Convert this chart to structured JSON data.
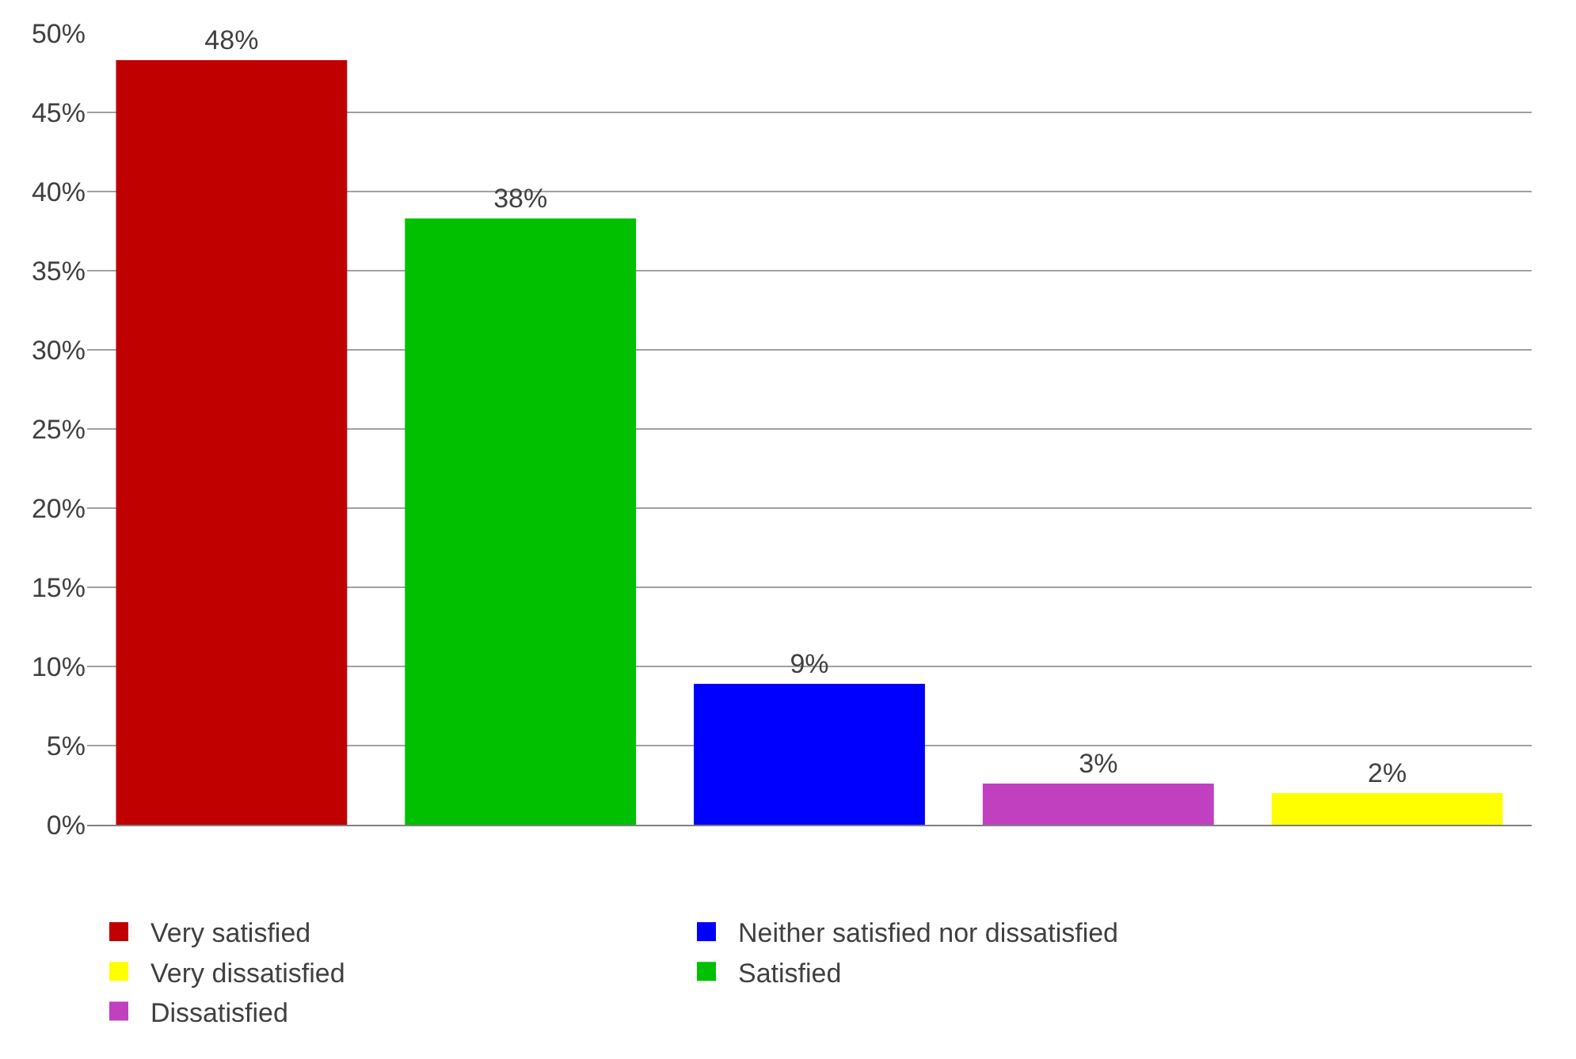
{
  "chart_data": {
    "type": "bar",
    "categories": [
      null,
      null,
      null,
      null,
      null
    ],
    "series": [
      {
        "name": "Very satisfied",
        "color": "#c00000",
        "values": [
          48.3,
          null,
          null,
          null,
          null
        ],
        "value_labels": [
          "48%",
          null,
          null,
          null,
          null
        ]
      },
      {
        "name": "Satisfied",
        "color": "#00c000",
        "values": [
          null,
          38.3,
          null,
          null,
          null
        ],
        "value_labels": [
          null,
          "38%",
          null,
          null,
          null
        ]
      },
      {
        "name": "Neither satisfied nor dissatisfied",
        "color": "#0000ff",
        "values": [
          null,
          null,
          8.9,
          null,
          null
        ],
        "value_labels": [
          null,
          null,
          "9%",
          null,
          null
        ]
      },
      {
        "name": "Dissatisfied",
        "color": "#c040c0",
        "values": [
          null,
          null,
          null,
          2.6,
          null
        ],
        "value_labels": [
          null,
          null,
          null,
          "3%",
          null
        ]
      },
      {
        "name": "Very dissatisfied",
        "color": "#ffff00",
        "values": [
          null,
          null,
          null,
          null,
          2.0
        ],
        "value_labels": [
          null,
          null,
          null,
          null,
          "2%"
        ]
      }
    ],
    "ylim": [
      0,
      50
    ],
    "yticks": [
      {
        "value": 0,
        "label": "0%"
      },
      {
        "value": 5,
        "label": "5%"
      },
      {
        "value": 10,
        "label": "10%"
      },
      {
        "value": 15,
        "label": "15%"
      },
      {
        "value": 20,
        "label": "20%"
      },
      {
        "value": 25,
        "label": "25%"
      },
      {
        "value": 30,
        "label": "30%"
      },
      {
        "value": 35,
        "label": "35%"
      },
      {
        "value": 40,
        "label": "40%"
      },
      {
        "value": 45,
        "label": "45%"
      },
      {
        "value": 50,
        "label": "50%"
      }
    ],
    "grid": "y",
    "legend": "bottom"
  }
}
